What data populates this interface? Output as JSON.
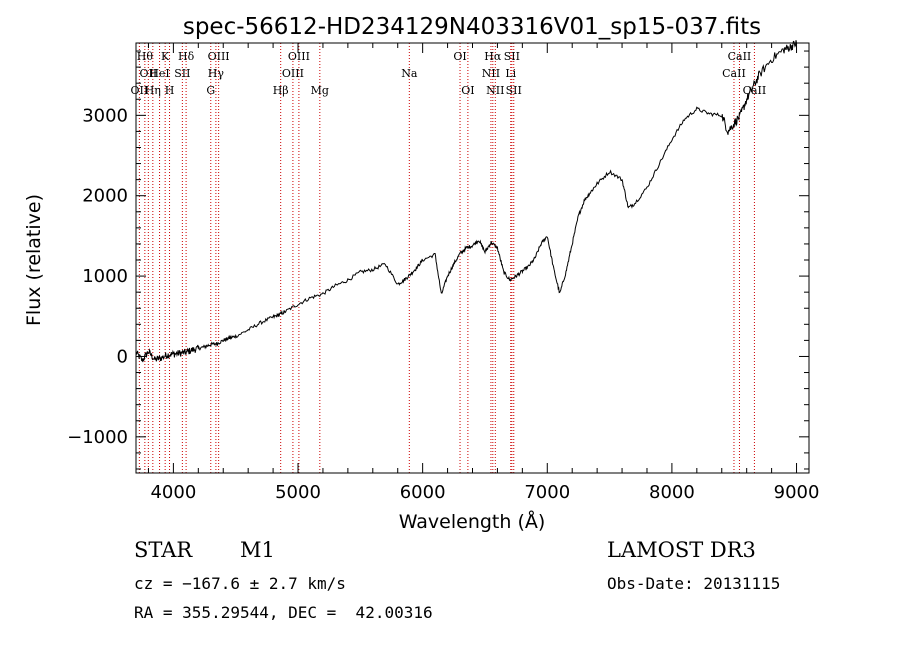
{
  "chart_data": {
    "type": "line",
    "title": "spec-56612-HD234129N403316V01_sp15-037.fits",
    "xlabel": "Wavelength (Å)",
    "ylabel": "Flux (relative)",
    "xlim": [
      3700,
      9100
    ],
    "ylim": [
      -1450,
      3900
    ],
    "xticks": [
      4000,
      5000,
      6000,
      7000,
      8000,
      9000
    ],
    "yticks": [
      -1000,
      0,
      1000,
      2000,
      3000
    ],
    "series": [
      {
        "name": "flux",
        "x": [
          3700,
          3750,
          3800,
          3850,
          3900,
          3950,
          4000,
          4050,
          4100,
          4150,
          4200,
          4250,
          4300,
          4350,
          4400,
          4450,
          4500,
          4600,
          4700,
          4800,
          4850,
          4900,
          5000,
          5100,
          5200,
          5300,
          5400,
          5500,
          5600,
          5700,
          5800,
          5850,
          5900,
          5950,
          6000,
          6100,
          6150,
          6200,
          6250,
          6300,
          6350,
          6400,
          6450,
          6500,
          6550,
          6600,
          6650,
          6700,
          6750,
          6800,
          6850,
          6900,
          6950,
          7000,
          7050,
          7100,
          7150,
          7200,
          7250,
          7300,
          7350,
          7400,
          7500,
          7600,
          7650,
          7700,
          7800,
          7900,
          8000,
          8100,
          8200,
          8300,
          8400,
          8450,
          8500,
          8550,
          8600,
          8650,
          8700,
          8800,
          8900,
          8950,
          9000
        ],
        "y": [
          50,
          -50,
          60,
          -40,
          -20,
          20,
          30,
          40,
          50,
          80,
          100,
          120,
          150,
          160,
          200,
          230,
          250,
          330,
          420,
          490,
          520,
          560,
          650,
          730,
          780,
          880,
          950,
          1050,
          1080,
          1150,
          900,
          950,
          1020,
          1100,
          1200,
          1270,
          770,
          1000,
          1150,
          1280,
          1350,
          1380,
          1450,
          1300,
          1420,
          1350,
          1050,
          950,
          1000,
          1060,
          1120,
          1220,
          1400,
          1500,
          1100,
          780,
          1050,
          1400,
          1750,
          1950,
          2050,
          2150,
          2300,
          2200,
          1850,
          1900,
          2100,
          2400,
          2700,
          2950,
          3080,
          3020,
          3000,
          2800,
          2900,
          3000,
          3200,
          3350,
          3500,
          3700,
          3820,
          3850,
          3900
        ]
      }
    ],
    "lines": [
      {
        "w": 3771,
        "label": "Hθ",
        "row": 0
      },
      {
        "w": 3799,
        "label": "OII",
        "row": 1
      },
      {
        "w": 3727,
        "label": "OII",
        "row": 2
      },
      {
        "w": 3835,
        "label": "Hη",
        "row": 2
      },
      {
        "w": 3889,
        "label": "HeI",
        "row": 1
      },
      {
        "w": 3934,
        "label": "K",
        "row": 0
      },
      {
        "w": 3969,
        "label": "H",
        "row": 2
      },
      {
        "w": 4072,
        "label": "SII",
        "row": 1
      },
      {
        "w": 4102,
        "label": "Hδ",
        "row": 0
      },
      {
        "w": 4300,
        "label": "G",
        "row": 2
      },
      {
        "w": 4341,
        "label": "Hγ",
        "row": 1
      },
      {
        "w": 4363,
        "label": "OIII",
        "row": 0
      },
      {
        "w": 4861,
        "label": "Hβ",
        "row": 2
      },
      {
        "w": 4959,
        "label": "OIII",
        "row": 1
      },
      {
        "w": 5007,
        "label": "OIII",
        "row": 0
      },
      {
        "w": 5175,
        "label": "Mg",
        "row": 2
      },
      {
        "w": 5893,
        "label": "Na",
        "row": 1
      },
      {
        "w": 6300,
        "label": "OI",
        "row": 0
      },
      {
        "w": 6363,
        "label": "OI",
        "row": 2
      },
      {
        "w": 6548,
        "label": "NII",
        "row": 1
      },
      {
        "w": 6563,
        "label": "Hα",
        "row": 0
      },
      {
        "w": 6583,
        "label": "NII",
        "row": 2
      },
      {
        "w": 6707,
        "label": "Li",
        "row": 1
      },
      {
        "w": 6716,
        "label": "SII",
        "row": 0
      },
      {
        "w": 6731,
        "label": "SII",
        "row": 2
      },
      {
        "w": 8498,
        "label": "CaII",
        "row": 1
      },
      {
        "w": 8542,
        "label": "CaII",
        "row": 0
      },
      {
        "w": 8662,
        "label": "CaII",
        "row": 2
      }
    ]
  },
  "info": {
    "object_class": "STAR",
    "subclass": "M1",
    "survey": "LAMOST DR3",
    "redshift": "cz = −167.6 ± 2.7 km/s",
    "obs_date": "Obs-Date: 20131115",
    "coords": "RA = 355.29544, DEC =  42.00316"
  }
}
